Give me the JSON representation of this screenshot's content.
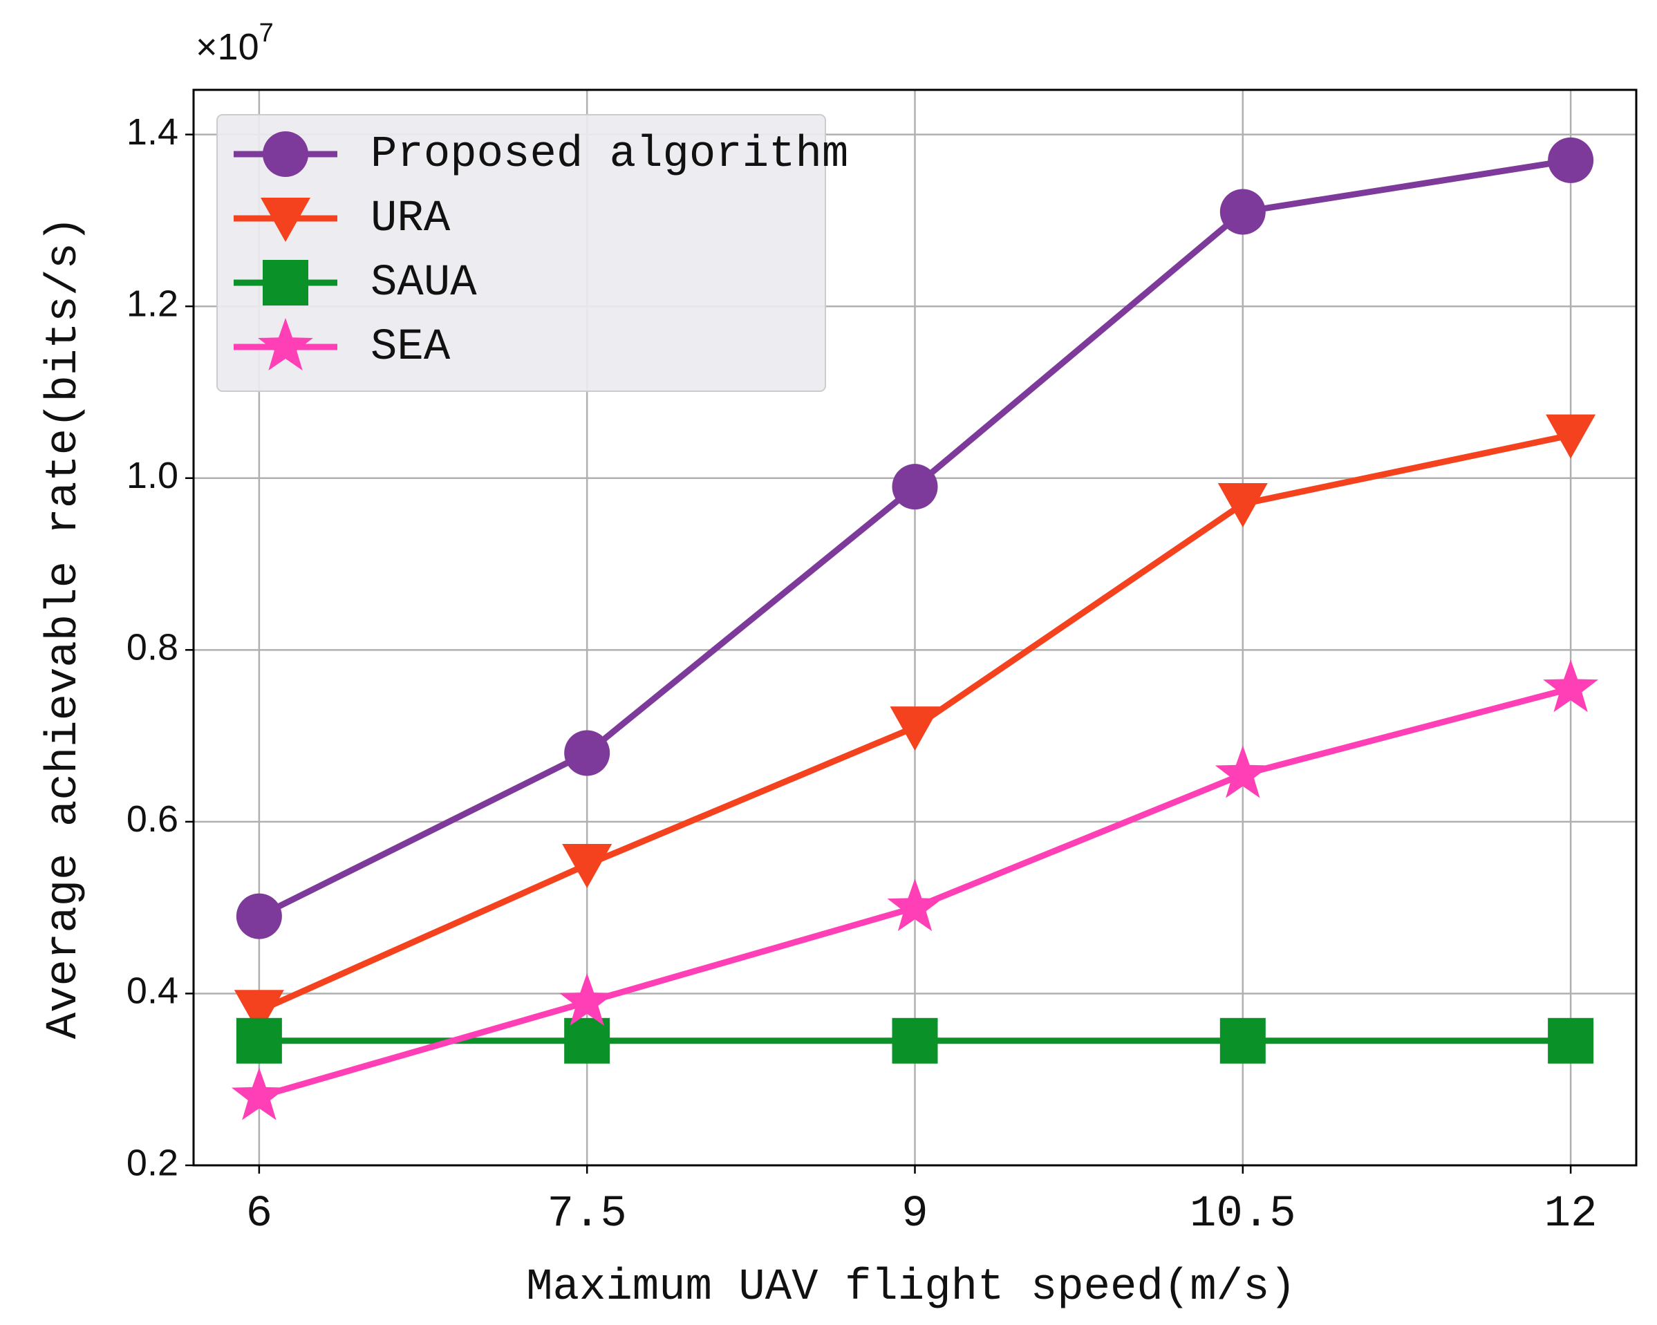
{
  "chart_data": {
    "type": "line",
    "x_label": "Maximum UAV flight speed(m/s)",
    "y_label": "Average achievable rate(bits/s)",
    "y_offset_label": {
      "base": "×10",
      "exponent": "7"
    },
    "x": [
      6,
      7.5,
      9,
      10.5,
      12
    ],
    "xlim": [
      5.7,
      12.3
    ],
    "xticks": [
      6,
      7.5,
      9,
      10.5,
      12
    ],
    "ylim": [
      0.2,
      1.452
    ],
    "yticks": [
      0.2,
      0.4,
      0.6,
      0.8,
      {
        "value": 1,
        "label": "1.0"
      },
      1.2,
      1.4
    ],
    "grid": true,
    "legend": "upper left",
    "series": [
      {
        "name": "Proposed algorithm",
        "color": "#7e3a9a",
        "marker": "circle",
        "values": [
          0.49,
          0.68,
          0.99,
          1.31,
          1.37
        ]
      },
      {
        "name": "URA",
        "color": "#f4421e",
        "marker": "triangle-down",
        "values": [
          0.38,
          0.55,
          0.71,
          0.97,
          1.05
        ]
      },
      {
        "name": "SAUA",
        "color": "#0a9128",
        "marker": "square",
        "values": [
          0.345,
          0.345,
          0.345,
          0.345,
          0.345
        ]
      },
      {
        "name": "SEA",
        "color": "#ff3fb5",
        "marker": "star",
        "values": [
          0.28,
          0.39,
          0.5,
          0.655,
          0.755
        ]
      }
    ]
  }
}
